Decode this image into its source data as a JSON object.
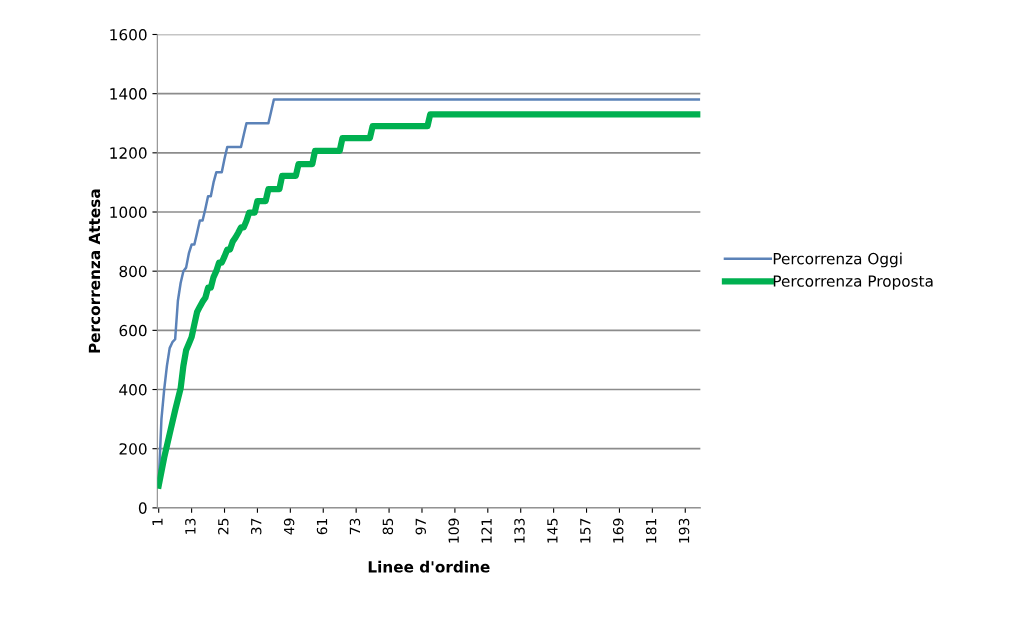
{
  "chart_data": {
    "type": "line",
    "xlabel": "Linee d'ordine",
    "ylabel": "Percorrenza Attesa",
    "xlim": [
      0.5,
      198.5
    ],
    "xticks": [
      1,
      13,
      25,
      37,
      49,
      61,
      73,
      85,
      97,
      109,
      121,
      133,
      145,
      157,
      169,
      181,
      193
    ],
    "ylim": [
      0,
      1600
    ],
    "yticks": [
      0,
      200,
      400,
      600,
      800,
      1000,
      1200,
      1400,
      1600
    ],
    "grid": "y",
    "legend": "right",
    "marker": "none",
    "line_style": "solid",
    "series": [
      {
        "name": "Percorrenza Oggi",
        "color": "#5b82b8",
        "x": [
          1,
          2,
          3,
          4,
          5,
          6,
          7,
          8,
          9,
          10,
          11,
          12,
          13,
          14,
          15,
          16,
          17,
          18,
          19,
          20,
          21,
          22,
          24,
          25,
          26,
          31,
          32,
          33,
          41,
          42,
          43,
          198
        ],
        "values": [
          80,
          300,
          400,
          480,
          540,
          560,
          570,
          700,
          760,
          800,
          812,
          860,
          890,
          890,
          930,
          971,
          971,
          1010,
          1053,
          1053,
          1100,
          1134,
          1134,
          1180,
          1220,
          1220,
          1260,
          1300,
          1300,
          1340,
          1380,
          1380
        ]
      },
      {
        "name": "Percorrenza Proposta",
        "color": "#00b050",
        "x": [
          1,
          3,
          5,
          7,
          9,
          10,
          11,
          12,
          13,
          14,
          15,
          16,
          17,
          18,
          19,
          20,
          21,
          22,
          23,
          24,
          25,
          26,
          27,
          28,
          29,
          30,
          31,
          32,
          33,
          34,
          36,
          37,
          40,
          41,
          45,
          46,
          51,
          52,
          57,
          58,
          67,
          68,
          78,
          79,
          99,
          100,
          198
        ],
        "values": [
          75,
          170,
          250,
          330,
          404,
          480,
          533,
          555,
          577,
          620,
          662,
          680,
          697,
          710,
          744,
          744,
          780,
          800,
          829,
          829,
          850,
          873,
          873,
          900,
          914,
          930,
          948,
          948,
          970,
          998,
          998,
          1037,
          1037,
          1077,
          1077,
          1122,
          1122,
          1162,
          1162,
          1207,
          1207,
          1250,
          1250,
          1290,
          1290,
          1330,
          1330
        ]
      }
    ]
  }
}
